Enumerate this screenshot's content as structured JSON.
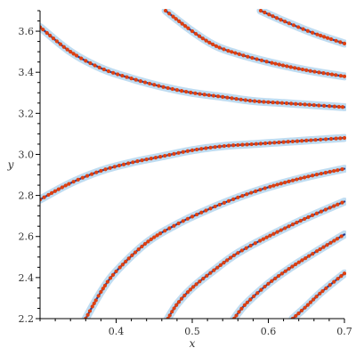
{
  "chart_data": {
    "type": "scatter",
    "xlabel": "x",
    "ylabel": "y",
    "xlim": [
      0.3,
      0.7
    ],
    "ylim": [
      2.2,
      3.7
    ],
    "xticks": [
      0.4,
      0.5,
      0.6,
      0.7
    ],
    "xtick_labels": [
      "0.4",
      "0.5",
      "0.6",
      "0.7"
    ],
    "yticks": [
      2.2,
      2.4,
      2.6,
      2.8,
      3.0,
      3.2,
      3.4,
      3.6
    ],
    "ytick_labels": [
      "2.2",
      "2.4",
      "2.6",
      "2.8",
      "3.0",
      "3.2",
      "3.4",
      "3.6"
    ],
    "grid": false,
    "colors": {
      "points": "#e04010",
      "line": "#2b3a8c",
      "halo": "#b8d8f0",
      "axis": "#000000"
    },
    "series": [
      {
        "points": [
          [
            0.3,
            3.62
          ],
          [
            0.34,
            3.5
          ],
          [
            0.38,
            3.42
          ],
          [
            0.42,
            3.37
          ],
          [
            0.46,
            3.33
          ],
          [
            0.5,
            3.3
          ],
          [
            0.54,
            3.28
          ],
          [
            0.58,
            3.26
          ],
          [
            0.62,
            3.25
          ],
          [
            0.66,
            3.24
          ],
          [
            0.7,
            3.23
          ]
        ]
      },
      {
        "points": [
          [
            0.3,
            2.78
          ],
          [
            0.34,
            2.86
          ],
          [
            0.38,
            2.92
          ],
          [
            0.42,
            2.96
          ],
          [
            0.46,
            2.99
          ],
          [
            0.5,
            3.02
          ],
          [
            0.54,
            3.04
          ],
          [
            0.58,
            3.05
          ],
          [
            0.62,
            3.06
          ],
          [
            0.66,
            3.07
          ],
          [
            0.7,
            3.08
          ]
        ]
      },
      {
        "points": [
          [
            0.36,
            2.2
          ],
          [
            0.38,
            2.33
          ],
          [
            0.4,
            2.43
          ],
          [
            0.44,
            2.57
          ],
          [
            0.48,
            2.66
          ],
          [
            0.52,
            2.73
          ],
          [
            0.56,
            2.79
          ],
          [
            0.6,
            2.84
          ],
          [
            0.65,
            2.89
          ],
          [
            0.7,
            2.93
          ]
        ]
      },
      {
        "points": [
          [
            0.468,
            2.2
          ],
          [
            0.48,
            2.27
          ],
          [
            0.5,
            2.35
          ],
          [
            0.53,
            2.44
          ],
          [
            0.56,
            2.52
          ],
          [
            0.6,
            2.6
          ],
          [
            0.65,
            2.69
          ],
          [
            0.7,
            2.77
          ]
        ]
      },
      {
        "points": [
          [
            0.555,
            2.2
          ],
          [
            0.57,
            2.27
          ],
          [
            0.6,
            2.37
          ],
          [
            0.63,
            2.45
          ],
          [
            0.66,
            2.52
          ],
          [
            0.7,
            2.61
          ]
        ]
      },
      {
        "points": [
          [
            0.632,
            2.2
          ],
          [
            0.65,
            2.26
          ],
          [
            0.67,
            2.33
          ],
          [
            0.7,
            2.42
          ]
        ]
      },
      {
        "points": [
          [
            0.465,
            3.7
          ],
          [
            0.5,
            3.6
          ],
          [
            0.53,
            3.53
          ],
          [
            0.56,
            3.49
          ],
          [
            0.6,
            3.45
          ],
          [
            0.65,
            3.41
          ],
          [
            0.7,
            3.38
          ]
        ]
      },
      {
        "points": [
          [
            0.59,
            3.7
          ],
          [
            0.62,
            3.65
          ],
          [
            0.66,
            3.59
          ],
          [
            0.7,
            3.54
          ]
        ]
      }
    ]
  }
}
